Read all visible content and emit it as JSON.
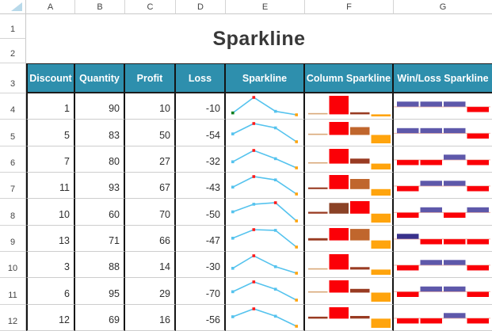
{
  "title": "Sparkline",
  "grid": {
    "column_letters": [
      "A",
      "B",
      "C",
      "D",
      "E",
      "F",
      "G"
    ],
    "row_numbers": [
      "1",
      "2",
      "3",
      "4",
      "5",
      "6",
      "7",
      "8",
      "9",
      "10",
      "11",
      "12"
    ]
  },
  "table": {
    "headers": [
      "Discount",
      "Quantity",
      "Profit",
      "Loss",
      "Sparkline",
      "Column Sparkline",
      "Win/Loss Sparkline"
    ]
  },
  "chart_data": {
    "type": "table",
    "title": "Sparkline",
    "columns": [
      "Discount",
      "Quantity",
      "Profit",
      "Loss"
    ],
    "sparkline_types": [
      "line",
      "column",
      "win-loss"
    ],
    "rows": [
      {
        "row_label": "4",
        "values": [
          1,
          90,
          10,
          -10
        ],
        "display": [
          "1",
          "90",
          "10",
          "-10"
        ],
        "line_markers": [
          "first",
          "high",
          "normal",
          "negative"
        ],
        "bar_colors": [
          "tan",
          "high",
          "thindark",
          "negative"
        ],
        "win_loss": [
          "pos",
          "pos",
          "pos",
          "neg"
        ]
      },
      {
        "row_label": "5",
        "values": [
          5,
          83,
          50,
          -54
        ],
        "display": [
          "5",
          "83",
          "50",
          "-54"
        ],
        "line_markers": [
          "normal",
          "high",
          "normal",
          "negative"
        ],
        "bar_colors": [
          "tan",
          "high",
          "brown",
          "negative"
        ],
        "win_loss": [
          "pos",
          "pos",
          "pos",
          "neg"
        ]
      },
      {
        "row_label": "6",
        "values": [
          7,
          80,
          27,
          -32
        ],
        "display": [
          "7",
          "80",
          "27",
          "-32"
        ],
        "line_markers": [
          "normal",
          "high",
          "normal",
          "negative"
        ],
        "bar_colors": [
          "tan",
          "high",
          "thindark",
          "negative"
        ],
        "win_loss": [
          "neg",
          "neg",
          "pos",
          "neg"
        ]
      },
      {
        "row_label": "7",
        "values": [
          11,
          93,
          67,
          -43
        ],
        "display": [
          "11",
          "93",
          "67",
          "-43"
        ],
        "line_markers": [
          "normal",
          "high",
          "normal",
          "negative"
        ],
        "bar_colors": [
          "thindark",
          "high",
          "brown",
          "negative"
        ],
        "win_loss": [
          "neg",
          "pos",
          "pos",
          "neg"
        ]
      },
      {
        "row_label": "8",
        "values": [
          10,
          60,
          70,
          -50
        ],
        "display": [
          "10",
          "60",
          "70",
          "-50"
        ],
        "line_markers": [
          "normal",
          "normal",
          "high",
          "negative"
        ],
        "bar_colors": [
          "thindark",
          "browndark",
          "high",
          "negative"
        ],
        "win_loss": [
          "neg",
          "pos",
          "neg",
          "pos"
        ]
      },
      {
        "row_label": "9",
        "values": [
          13,
          71,
          66,
          -47
        ],
        "display": [
          "13",
          "71",
          "66",
          "-47"
        ],
        "line_markers": [
          "normal",
          "high",
          "normal",
          "negative"
        ],
        "bar_colors": [
          "thindark",
          "high",
          "brown",
          "negative"
        ],
        "win_loss": [
          "posdark",
          "neg",
          "neg",
          "neg"
        ]
      },
      {
        "row_label": "10",
        "values": [
          3,
          88,
          14,
          -30
        ],
        "display": [
          "3",
          "88",
          "14",
          "-30"
        ],
        "line_markers": [
          "normal",
          "high",
          "normal",
          "negative"
        ],
        "bar_colors": [
          "tan",
          "high",
          "thindark",
          "negative"
        ],
        "win_loss": [
          "neg",
          "pos",
          "pos",
          "neg"
        ]
      },
      {
        "row_label": "11",
        "values": [
          6,
          95,
          29,
          -70
        ],
        "display": [
          "6",
          "95",
          "29",
          "-70"
        ],
        "line_markers": [
          "normal",
          "high",
          "normal",
          "negative"
        ],
        "bar_colors": [
          "tan",
          "high",
          "thindark",
          "negative"
        ],
        "win_loss": [
          "neg",
          "pos",
          "pos",
          "neg"
        ]
      },
      {
        "row_label": "12",
        "values": [
          12,
          69,
          16,
          -56
        ],
        "display": [
          "12",
          "69",
          "16",
          "-56"
        ],
        "line_markers": [
          "normal",
          "high",
          "normal",
          "negative"
        ],
        "bar_colors": [
          "thindark",
          "high",
          "thindark",
          "negative"
        ],
        "win_loss": [
          "neg",
          "neg",
          "pos",
          "neg"
        ]
      }
    ]
  },
  "palette": {
    "header_bg": "#2E8FAD",
    "header_text": "#FFFFFF",
    "title_text": "#383838",
    "cell_text": "#2E2E2E",
    "border_dark": "#141414",
    "row_gridline": "#CDCDCD",
    "header_gridline": "#C9C9C9",
    "select_all": "#B8D9EA",
    "spark_line": "#55C3EE",
    "marker_normal": "#55C3EE",
    "marker_high": "#FF1A1A",
    "marker_negative": "#FFA40D",
    "marker_first": "#0E7E1E",
    "bar_tan": "#D9A878",
    "bar_thindark": "#993B22",
    "bar_brown": "#C0662D",
    "bar_browndark": "#8B4226",
    "bar_high": "#FB0007",
    "bar_negative": "#FFA40D",
    "win_pos": "#5E58AA",
    "win_posdark": "#39318C",
    "win_neg": "#FB0007",
    "axis_pink": "#F0BDB4"
  }
}
